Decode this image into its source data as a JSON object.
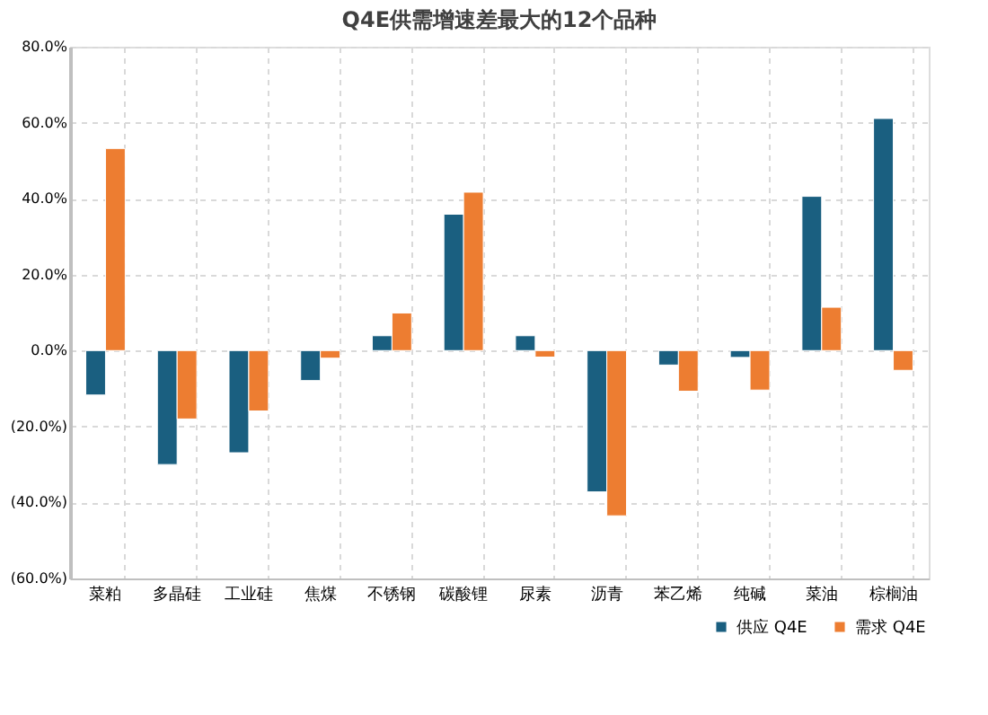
{
  "chart_data": {
    "type": "bar",
    "title": "Q4E供需增速差最大的12个品种",
    "categories": [
      "菜粕",
      "多晶硅",
      "工业硅",
      "焦煤",
      "不锈钢",
      "碳酸锂",
      "尿素",
      "沥青",
      "苯乙烯",
      "纯碱",
      "菜油",
      "棕榈油"
    ],
    "series": [
      {
        "name": "供应 Q4E",
        "color": "#1a5f80",
        "values": [
          -11.7,
          -30.0,
          -26.9,
          -7.9,
          3.9,
          35.9,
          3.9,
          -37.2,
          -3.8,
          -1.8,
          40.6,
          61.1
        ]
      },
      {
        "name": "需求 Q4E",
        "color": "#ed7d31",
        "values": [
          53.2,
          -18.0,
          -15.9,
          -2.0,
          9.9,
          41.7,
          -1.7,
          -43.5,
          -10.7,
          -10.4,
          11.4,
          -5.2
        ]
      }
    ],
    "ylim": [
      -60,
      80
    ],
    "yticks": [
      {
        "value": -60,
        "label": "(60.0%)"
      },
      {
        "value": -40,
        "label": "(40.0%)"
      },
      {
        "value": -20,
        "label": "(20.0%)"
      },
      {
        "value": 0,
        "label": "0.0%"
      },
      {
        "value": 20,
        "label": "20.0%"
      },
      {
        "value": 40,
        "label": "40.0%"
      },
      {
        "value": 60,
        "label": "60.0%"
      },
      {
        "value": 80,
        "label": "80.0%"
      }
    ],
    "grid": true,
    "legend": "bottom right"
  }
}
